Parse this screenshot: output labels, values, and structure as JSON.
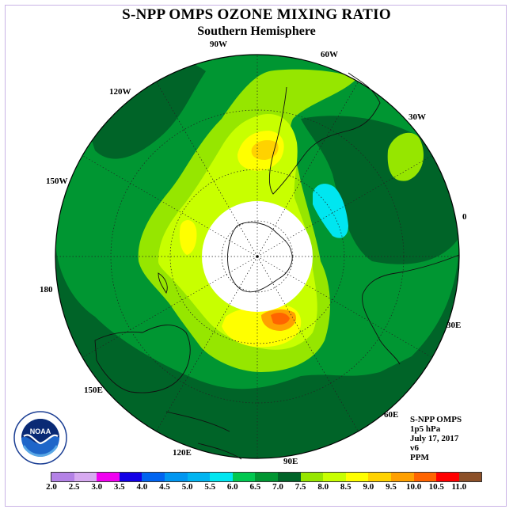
{
  "title": "S-NPP OMPS OZONE MIXING RATIO",
  "subtitle": "Southern Hemisphere",
  "longitude_labels": [
    "90W",
    "60W",
    "30W",
    "0",
    "30E",
    "60E",
    "90E",
    "120E",
    "150E",
    "180",
    "150W",
    "120W"
  ],
  "info": {
    "instrument": "S-NPP OMPS",
    "level": "1p5 hPa",
    "date": "July 17, 2017",
    "version": "v6",
    "units": "PPM"
  },
  "logo": {
    "name": "NOAA",
    "ring_text": "NATIONAL OCEANIC AND ATMOSPHERIC ADMINISTRATION · U.S. DEPARTMENT OF COMMERCE"
  },
  "colorbar": {
    "tick_labels": [
      "2.0",
      "2.5",
      "3.0",
      "3.5",
      "4.0",
      "4.5",
      "5.0",
      "5.5",
      "6.0",
      "6.5",
      "7.0",
      "7.5",
      "8.0",
      "8.5",
      "9.0",
      "9.5",
      "10.0",
      "10.5",
      "11.0"
    ],
    "colors": [
      "#b482e6",
      "#d7aaf0",
      "#f000f0",
      "#1400e6",
      "#0064f0",
      "#0096f0",
      "#00b4f0",
      "#00e6f0",
      "#00c850",
      "#009632",
      "#006428",
      "#96e600",
      "#c8ff00",
      "#ffff00",
      "#ffd200",
      "#ffa000",
      "#ff6400",
      "#ff0000",
      "#8c5028"
    ]
  },
  "map_colors": {
    "dark_green": "#006428",
    "mid_green": "#009632",
    "green": "#00c850",
    "light_green": "#96e600",
    "yellow_green": "#c8ff00",
    "yellow": "#ffff00",
    "gold": "#ffd200",
    "orange": "#ffa000",
    "dark_orange": "#ff6400",
    "cyan": "#00e6f0"
  }
}
